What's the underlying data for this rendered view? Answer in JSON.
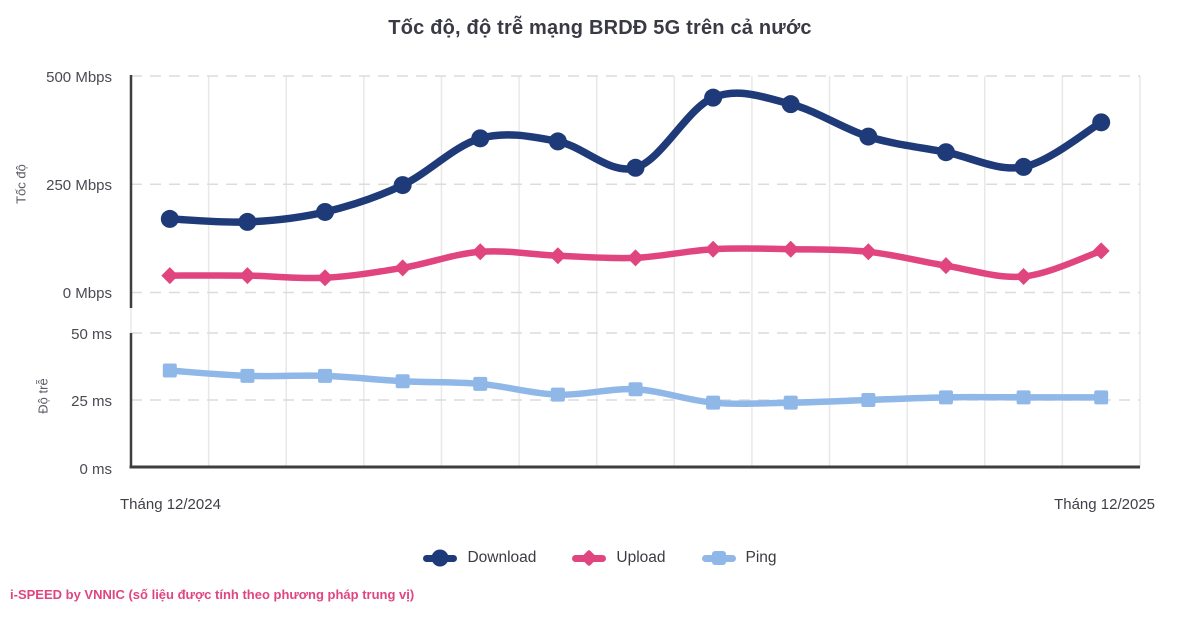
{
  "title": "Tốc độ, độ trễ mạng BRDĐ 5G trên cả nước",
  "footer": {
    "text": "i-SPEED by VNNIC (số liệu được tính theo phương pháp trung vị)",
    "color": "#e0457f"
  },
  "legend": [
    {
      "label": "Download",
      "color": "#1e3a78",
      "marker": "circle"
    },
    {
      "label": "Upload",
      "color": "#e0457f",
      "marker": "diamond"
    },
    {
      "label": "Ping",
      "color": "#8fb7e8",
      "marker": "square"
    }
  ],
  "chart_data": {
    "type": "line",
    "title": "Tốc độ, độ trễ mạng BRDĐ 5G trên cả nước",
    "x_labels": [
      "Tháng 12/2024",
      "Tháng 12/2025"
    ],
    "n_points": 13,
    "grid": true,
    "legend_position": "bottom",
    "panels": [
      {
        "ylabel": "Tốc độ",
        "ylim": [
          0,
          500
        ],
        "yticks": [
          {
            "label": "500 Mbps",
            "value": 500
          },
          {
            "label": "250 Mbps",
            "value": 250
          },
          {
            "label": "0 Mbps",
            "value": 0
          }
        ],
        "series": [
          {
            "name": "Download",
            "color": "#1e3a78",
            "marker": "circle",
            "unit": "Mbps",
            "values": [
              170,
              163,
              186,
              248,
              356,
              349,
              288,
              450,
              435,
              360,
              324,
              290,
              393
            ]
          },
          {
            "name": "Upload",
            "color": "#e0457f",
            "marker": "diamond",
            "unit": "Mbps",
            "values": [
              39,
              39,
              34,
              57,
              94,
              85,
              80,
              100,
              100,
              94,
              62,
              37,
              96
            ]
          }
        ]
      },
      {
        "ylabel": "Độ trễ",
        "ylim": [
          0,
          50
        ],
        "yticks": [
          {
            "label": "50 ms",
            "value": 50
          },
          {
            "label": "25 ms",
            "value": 25
          },
          {
            "label": "0 ms",
            "value": 0
          }
        ],
        "series": [
          {
            "name": "Ping",
            "color": "#8fb7e8",
            "marker": "square",
            "unit": "ms",
            "values": [
              36,
              34,
              34,
              32,
              31,
              27,
              29,
              24,
              24,
              25,
              26,
              26,
              26
            ]
          }
        ]
      }
    ]
  }
}
